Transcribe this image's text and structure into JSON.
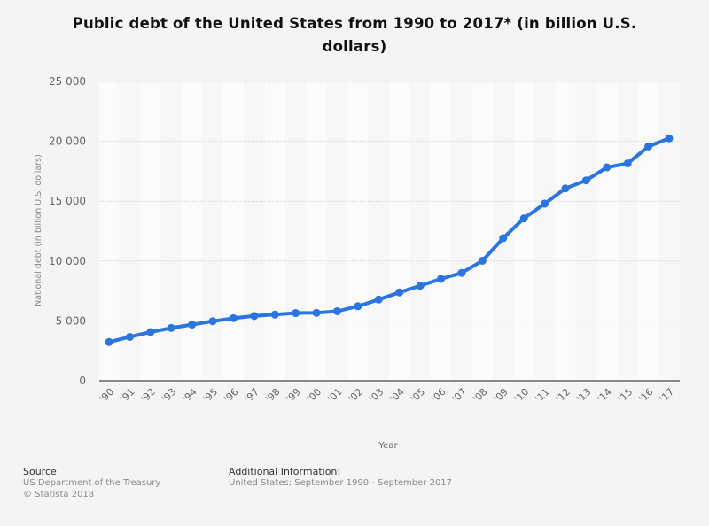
{
  "title": "Public debt of the United States from 1990 to 2017* (in billion U.S. dollars)",
  "title_line1": "Public debt of the United States from 1990 to 2017* (in billion U.S.",
  "title_line2": "dollars)",
  "colors": {
    "line": "#2a75e0",
    "background": "#f4f4f4",
    "grid": "#dddddd",
    "axis": "#666666"
  },
  "footer": {
    "source_label": "Source",
    "source_lines": [
      "US Department of the Treasury",
      "© Statista 2018"
    ],
    "info_label": "Additional Information:",
    "info_text": "United States; September 1990 - September 2017"
  },
  "chart_data": {
    "type": "line",
    "title": "Public debt of the United States from 1990 to 2017* (in billion U.S. dollars)",
    "xlabel": "Year",
    "ylabel": "National debt (in billion U.S. dollars)",
    "categories": [
      "'90",
      "'91",
      "'92",
      "'93",
      "'94",
      "'95",
      "'96",
      "'97",
      "'98",
      "'99",
      "'00",
      "'01",
      "'02",
      "'03",
      "'04",
      "'05",
      "'06",
      "'07",
      "'08",
      "'09",
      "'10",
      "'11",
      "'12",
      "'13",
      "'14",
      "'15",
      "'16",
      "'17"
    ],
    "series": [
      {
        "name": "National debt",
        "values": [
          3233,
          3665,
          4065,
          4411,
          4693,
          4974,
          5225,
          5413,
          5526,
          5656,
          5674,
          5807,
          6228,
          6783,
          7379,
          7933,
          8507,
          9008,
          10025,
          11910,
          13562,
          14790,
          16066,
          16738,
          17824,
          18151,
          19573,
          20245
        ]
      }
    ],
    "ylim": [
      0,
      25000
    ],
    "yticks": [
      0,
      5000,
      10000,
      15000,
      20000,
      25000
    ],
    "ytick_labels": [
      "0",
      "5 000",
      "10 000",
      "15 000",
      "20 000",
      "25 000"
    ],
    "grid": true,
    "legend": null
  }
}
